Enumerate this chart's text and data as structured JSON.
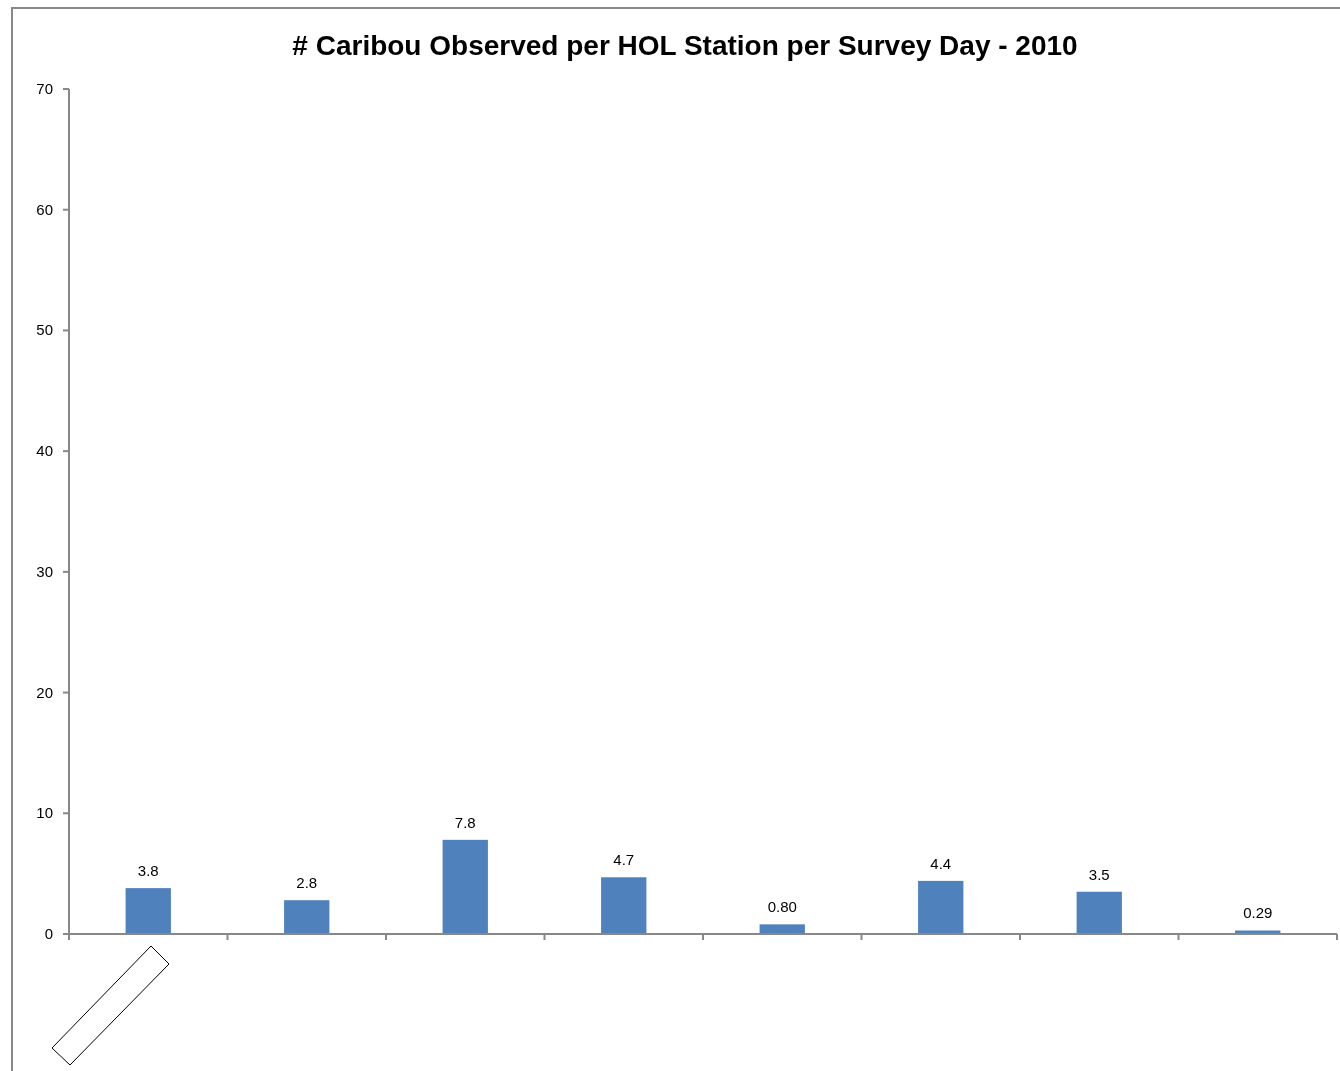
{
  "chart_data": {
    "type": "bar",
    "title": "# Caribou Observed per HOL Station per Survey Day - 2010",
    "categories": [
      null,
      null,
      null,
      null,
      null,
      null,
      null,
      null
    ],
    "values": [
      3.8,
      2.8,
      7.8,
      4.7,
      0.8,
      4.4,
      3.5,
      0.29
    ],
    "value_labels": [
      "3.8",
      "2.8",
      "7.8",
      "4.7",
      "0.80",
      "4.4",
      "3.5",
      "0.29"
    ],
    "color": "#4f81bd",
    "ylim": [
      0,
      70
    ],
    "yticks": [
      0,
      10,
      20,
      30,
      40,
      50,
      60,
      70
    ],
    "grid": false
  }
}
